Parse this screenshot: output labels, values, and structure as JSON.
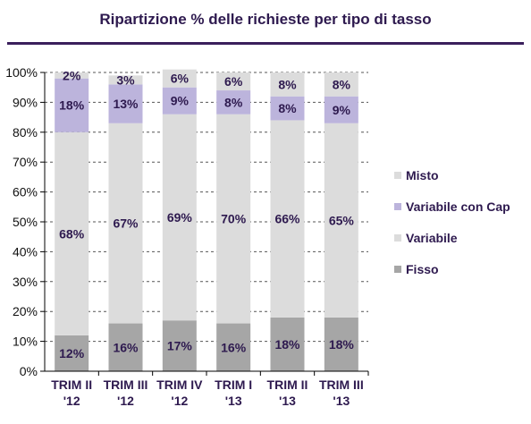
{
  "chart_data": {
    "type": "bar",
    "stacked": true,
    "title": "Ripartizione % delle richieste per tipo di tasso",
    "categories": [
      [
        "TRIM II",
        "'12"
      ],
      [
        "TRIM III",
        "'12"
      ],
      [
        "TRIM IV",
        "'12"
      ],
      [
        "TRIM I",
        "'13"
      ],
      [
        "TRIM II",
        "'13"
      ],
      [
        "TRIM III",
        "'13"
      ]
    ],
    "series": [
      {
        "name": "Fisso",
        "values": [
          12,
          16,
          17,
          16,
          18,
          18
        ],
        "color": "#a6a6a6"
      },
      {
        "name": "Variabile",
        "values": [
          68,
          67,
          69,
          70,
          66,
          65
        ],
        "color": "#dcdcdc"
      },
      {
        "name": "Variabile con Cap",
        "values": [
          18,
          13,
          9,
          8,
          8,
          9
        ],
        "color": "#bcb4dc"
      },
      {
        "name": "Misto",
        "values": [
          2,
          3,
          6,
          6,
          8,
          8
        ],
        "color": "#dcdcdc"
      }
    ],
    "y_ticks": [
      "0%",
      "10%",
      "20%",
      "30%",
      "40%",
      "50%",
      "60%",
      "70%",
      "80%",
      "90%",
      "100%"
    ],
    "ylim": [
      0,
      100
    ],
    "grid": "dashed horizontal",
    "legend_position": "right"
  }
}
